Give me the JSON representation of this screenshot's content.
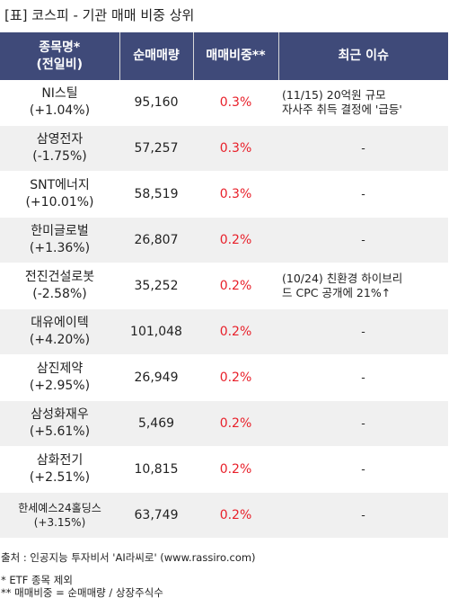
{
  "title": "[표] 코스피 - 기관 매매 비중 상위",
  "header": {
    "col1_line1": "종목명*",
    "col1_line2": "(전일비)",
    "col2": "순매매량",
    "col3": "매매비중**",
    "col4": "최근 이슈"
  },
  "rows": [
    {
      "name": "NI스틸",
      "change": "(+1.04%)",
      "volume": "95,160",
      "ratio": "0.3%",
      "issue_line1": "(11/15) 20억원 규모",
      "issue_line2": "자사주 취득 결정에 '급등'"
    },
    {
      "name": "삼영전자",
      "change": "(-1.75%)",
      "volume": "57,257",
      "ratio": "0.3%",
      "issue_line1": "-",
      "issue_line2": ""
    },
    {
      "name": "SNT에너지",
      "change": "(+10.01%)",
      "volume": "58,519",
      "ratio": "0.3%",
      "issue_line1": "-",
      "issue_line2": ""
    },
    {
      "name": "한미글로벌",
      "change": "(+1.36%)",
      "volume": "26,807",
      "ratio": "0.2%",
      "issue_line1": "-",
      "issue_line2": ""
    },
    {
      "name": "전진건설로봇",
      "change": "(-2.58%)",
      "volume": "35,252",
      "ratio": "0.2%",
      "issue_line1": "(10/24) 친환경 하이브리",
      "issue_line2": "드 CPC 공개에 21%↑"
    },
    {
      "name": "대유에이텍",
      "change": "(+4.20%)",
      "volume": "101,048",
      "ratio": "0.2%",
      "issue_line1": "-",
      "issue_line2": ""
    },
    {
      "name": "삼진제약",
      "change": "(+2.95%)",
      "volume": "26,949",
      "ratio": "0.2%",
      "issue_line1": "-",
      "issue_line2": ""
    },
    {
      "name": "삼성화재우",
      "change": "(+5.61%)",
      "volume": "5,469",
      "ratio": "0.2%",
      "issue_line1": "-",
      "issue_line2": ""
    },
    {
      "name": "삼화전기",
      "change": "(+2.51%)",
      "volume": "10,815",
      "ratio": "0.2%",
      "issue_line1": "-",
      "issue_line2": ""
    },
    {
      "name": "한세예스24홀딩스",
      "change": "(+3.15%)",
      "volume": "63,749",
      "ratio": "0.2%",
      "issue_line1": "-",
      "issue_line2": ""
    }
  ],
  "footer": {
    "source": "출처 : 인공지능 투자비서 'AI라씨로' (www.rassiro.com)",
    "note1": "* ETF 종목 제외",
    "note2": "** 매매비중 = 순매매량 / 상장주식수"
  },
  "colors": {
    "header_bg": "#3f4a79",
    "ratio_text": "#e8202a",
    "row_alt": "#f0f0f0"
  }
}
